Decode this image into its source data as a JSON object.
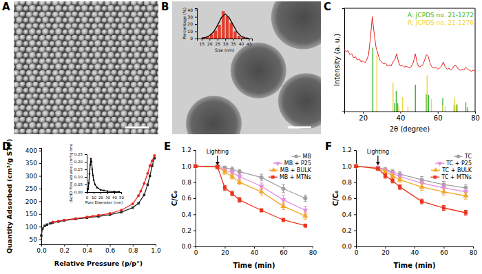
{
  "chart_data": [
    {
      "type": "image",
      "title": "A"
    },
    {
      "type": "image",
      "title": "B"
    },
    {
      "type": "histogram",
      "xlabel": "Size (nm)",
      "ylabel": "Percentage (%)",
      "xlim": [
        12,
        47
      ],
      "xticks": [
        15,
        20,
        25,
        30,
        35,
        40,
        45
      ],
      "ylim": [
        0,
        42
      ],
      "yticks": [
        0,
        10,
        20,
        30,
        40
      ],
      "series": [
        {
          "type": "histogram",
          "color": "#e33d2b",
          "bins": [
            15,
            17.5,
            20,
            22.5,
            25,
            27.5,
            30,
            32.5,
            35,
            37.5,
            40,
            42.5
          ],
          "values": [
            2,
            3,
            6,
            11,
            19,
            38,
            31,
            22,
            10,
            4,
            2
          ]
        },
        {
          "type": "line",
          "color": "#000000",
          "x": [
            15,
            17.5,
            20,
            22.5,
            25,
            27.5,
            30,
            32.5,
            35,
            37.5,
            40,
            42.5,
            45
          ],
          "values": [
            0.5,
            1.5,
            4,
            9,
            18,
            29,
            34,
            29,
            19,
            9,
            3.5,
            1,
            0.3
          ]
        }
      ]
    },
    {
      "type": "line",
      "title": "C",
      "xlabel": "2θ (degree)",
      "ylabel": "Intensity (a. u.)",
      "xlim": [
        10,
        80
      ],
      "xticks": [
        20,
        40,
        60,
        80
      ],
      "ylim": [
        0,
        100
      ],
      "yticks": [],
      "tick_labels": "x",
      "legend": "top-right",
      "series": [
        {
          "type": "line",
          "color": "#e8231c",
          "x": [
            10,
            11,
            12,
            13,
            14,
            15,
            16,
            17,
            18,
            19,
            20,
            21,
            22,
            23,
            24,
            25,
            26,
            27,
            28,
            29,
            30,
            31,
            32,
            33,
            34,
            35,
            36,
            37,
            38,
            39,
            40,
            41,
            42,
            43,
            44,
            45,
            46,
            47,
            48,
            49,
            50,
            51,
            52,
            53,
            54,
            55,
            56,
            57,
            58,
            59,
            60,
            61,
            62,
            63,
            64,
            65,
            66,
            67,
            68,
            69,
            70,
            71,
            72,
            73,
            74,
            75,
            76,
            77,
            78,
            79,
            80
          ],
          "values": [
            60,
            58,
            59,
            55,
            56,
            52,
            53,
            50,
            51,
            48,
            49,
            47,
            50,
            55,
            72,
            92,
            75,
            62,
            56,
            50,
            48,
            46,
            47,
            44,
            45,
            44,
            48,
            50,
            56,
            48,
            44,
            45,
            43,
            44,
            43,
            42,
            44,
            48,
            56,
            47,
            43,
            44,
            45,
            50,
            55,
            53,
            46,
            43,
            42,
            43,
            41,
            42,
            44,
            48,
            43,
            41,
            42,
            40,
            42,
            45,
            44,
            41,
            40,
            41,
            40,
            43,
            41,
            40,
            39,
            40,
            39
          ]
        },
        {
          "name": "A: JCPDS no. 21-1272",
          "type": "stick",
          "color": "#33b833",
          "x": [
            25.28,
            36.95,
            37.8,
            38.58,
            48.05,
            53.89,
            55.06,
            62.69,
            68.76,
            70.31,
            75.03,
            76.02
          ],
          "values": [
            62,
            8,
            20,
            8,
            26,
            17,
            16,
            13,
            6,
            7,
            9,
            4
          ]
        },
        {
          "name": "R: JCPDS no. 21-1276",
          "type": "stick",
          "color": "#f2d43a",
          "x": [
            27.45,
            36.09,
            39.19,
            41.23,
            44.05,
            54.32,
            56.64,
            62.74,
            64.04,
            69.01,
            69.79
          ],
          "values": [
            55,
            28,
            5,
            14,
            5,
            35,
            12,
            6,
            5,
            13,
            6
          ]
        }
      ]
    },
    {
      "type": "line",
      "title": "D",
      "xlabel": "Relative Pressure (p/p°)",
      "ylabel": "Quantity Adsorbed (cm³/g STP)",
      "xlim": [
        0,
        1
      ],
      "xticks": [
        {
          "value": 0,
          "label": "0.0"
        },
        0.2,
        0.4,
        0.6,
        0.8,
        {
          "value": 1,
          "label": "1.0"
        }
      ],
      "ylim": [
        30,
        410
      ],
      "yticks": [
        50,
        100,
        150,
        200,
        250,
        300,
        350,
        400
      ],
      "series": [
        {
          "type": "line",
          "color": "#222222",
          "marker": "square",
          "x": [
            0,
            0.01,
            0.03,
            0.05,
            0.08,
            0.1,
            0.15,
            0.2,
            0.3,
            0.4,
            0.5,
            0.6,
            0.7,
            0.8,
            0.85,
            0.9,
            0.93,
            0.95,
            0.97,
            0.99
          ],
          "values": [
            65,
            92,
            103,
            108,
            113,
            116,
            120,
            124,
            130,
            135,
            140,
            147,
            157,
            175,
            192,
            225,
            265,
            300,
            340,
            370
          ]
        },
        {
          "type": "line",
          "color": "#e8231c",
          "marker": "circle",
          "x": [
            0.99,
            0.97,
            0.95,
            0.93,
            0.9,
            0.87,
            0.85,
            0.8,
            0.7,
            0.6,
            0.5,
            0.45,
            0.4,
            0.3,
            0.2,
            0.15,
            0.1
          ],
          "values": [
            380,
            360,
            340,
            310,
            270,
            240,
            222,
            190,
            165,
            152,
            145,
            141,
            138,
            132,
            126,
            122,
            118
          ]
        }
      ]
    },
    {
      "type": "line",
      "xlabel": "Pore Diameter (nm)",
      "ylabel": "dV/dD Pore Volume (cm³/g nm)",
      "xlim": [
        0,
        50
      ],
      "xticks": [
        0,
        10,
        20,
        30,
        40,
        50
      ],
      "ylim": [
        0,
        0.25
      ],
      "yticks": [
        {
          "value": 0,
          "label": "0.00"
        },
        0.05,
        {
          "value": 0.1,
          "label": "0.10"
        },
        0.15,
        {
          "value": 0.2,
          "label": "0.20"
        },
        0.25
      ],
      "series": [
        {
          "type": "line",
          "color": "#000000",
          "marker": "circle",
          "x": [
            1,
            2,
            3,
            4,
            5,
            6,
            7,
            8,
            9,
            10,
            12,
            15,
            20,
            25,
            30,
            40,
            47
          ],
          "values": [
            0,
            0.02,
            0.06,
            0.12,
            0.18,
            0.22,
            0.2,
            0.15,
            0.11,
            0.08,
            0.05,
            0.03,
            0.015,
            0.01,
            0.006,
            0.003,
            0.002
          ]
        }
      ]
    },
    {
      "type": "line",
      "title": "E",
      "xlabel": "Time (min)",
      "ylabel": "C/C₀",
      "xlim": [
        0,
        80
      ],
      "xticks": [
        0,
        20,
        40,
        60,
        80
      ],
      "ylim": [
        0,
        1.2
      ],
      "yticks": [
        {
          "value": 0,
          "label": "0.0"
        },
        0.2,
        0.4,
        0.6,
        0.8,
        {
          "value": 1,
          "label": "1.0"
        },
        1.2
      ],
      "legend": "top-right",
      "annotations": [
        {
          "text": "Lighting",
          "x": 15
        }
      ],
      "x": [
        0,
        15,
        20,
        25,
        30,
        45,
        60,
        75
      ],
      "series": [
        {
          "name": "MB",
          "color": "#a0a0a0",
          "marker": "circle",
          "values": [
            1,
            1,
            0.98,
            0.96,
            0.93,
            0.86,
            0.72,
            0.6
          ],
          "errors": [
            0.01,
            0.02,
            0.02,
            0.03,
            0.03,
            0.04,
            0.05,
            0.04
          ]
        },
        {
          "name": "MB + P25",
          "color": "#e38ce0",
          "marker": "triangle-down",
          "values": [
            1,
            0.99,
            0.95,
            0.92,
            0.87,
            0.75,
            0.58,
            0.45
          ],
          "errors": [
            0.01,
            0.02,
            0.02,
            0.03,
            0.03,
            0.04,
            0.05,
            0.05
          ]
        },
        {
          "name": "MB + BULK",
          "color": "#f5a623",
          "marker": "triangle",
          "values": [
            1,
            0.99,
            0.93,
            0.87,
            0.8,
            0.68,
            0.5,
            0.38
          ],
          "errors": [
            0.01,
            0.02,
            0.03,
            0.03,
            0.03,
            0.04,
            0.04,
            0.04
          ]
        },
        {
          "name": "MB + MTNs",
          "color": "#e8351e",
          "marker": "square",
          "values": [
            1,
            0.99,
            0.73,
            0.66,
            0.58,
            0.45,
            0.33,
            0.26
          ],
          "errors": [
            0.01,
            0.02,
            0.03,
            0.03,
            0.03,
            0.02,
            0.02,
            0.02
          ]
        }
      ]
    },
    {
      "type": "line",
      "title": "F",
      "xlabel": "Time (min)",
      "ylabel": "C/C₀",
      "xlim": [
        0,
        80
      ],
      "xticks": [
        0,
        20,
        40,
        60,
        80
      ],
      "ylim": [
        0,
        1.2
      ],
      "yticks": [
        {
          "value": 0,
          "label": "0.0"
        },
        0.2,
        0.4,
        0.6,
        0.8,
        {
          "value": 1,
          "label": "1.0"
        },
        1.2
      ],
      "legend": "top-right",
      "annotations": [
        {
          "text": "Lighting",
          "x": 15
        }
      ],
      "x": [
        0,
        15,
        20,
        25,
        30,
        45,
        60,
        75
      ],
      "series": [
        {
          "name": "TC",
          "color": "#a0a0a0",
          "marker": "circle",
          "values": [
            1,
            0.98,
            0.96,
            0.93,
            0.9,
            0.83,
            0.77,
            0.73
          ],
          "errors": [
            0.01,
            0.02,
            0.02,
            0.03,
            0.03,
            0.04,
            0.04,
            0.04
          ]
        },
        {
          "name": "TC + P25",
          "color": "#e38ce0",
          "marker": "triangle-down",
          "values": [
            1,
            0.98,
            0.95,
            0.91,
            0.87,
            0.79,
            0.73,
            0.68
          ],
          "errors": [
            0.01,
            0.02,
            0.02,
            0.03,
            0.03,
            0.04,
            0.04,
            0.04
          ]
        },
        {
          "name": "TC + BULK",
          "color": "#f5a623",
          "marker": "triangle",
          "values": [
            1,
            0.97,
            0.93,
            0.88,
            0.83,
            0.74,
            0.68,
            0.63
          ],
          "errors": [
            0.01,
            0.02,
            0.03,
            0.03,
            0.03,
            0.04,
            0.04,
            0.04
          ]
        },
        {
          "name": "TC + MTNs",
          "color": "#e8351e",
          "marker": "square",
          "values": [
            1,
            0.97,
            0.88,
            0.82,
            0.74,
            0.56,
            0.48,
            0.42
          ],
          "errors": [
            0.01,
            0.02,
            0.03,
            0.03,
            0.03,
            0.03,
            0.03,
            0.03
          ]
        }
      ]
    }
  ]
}
